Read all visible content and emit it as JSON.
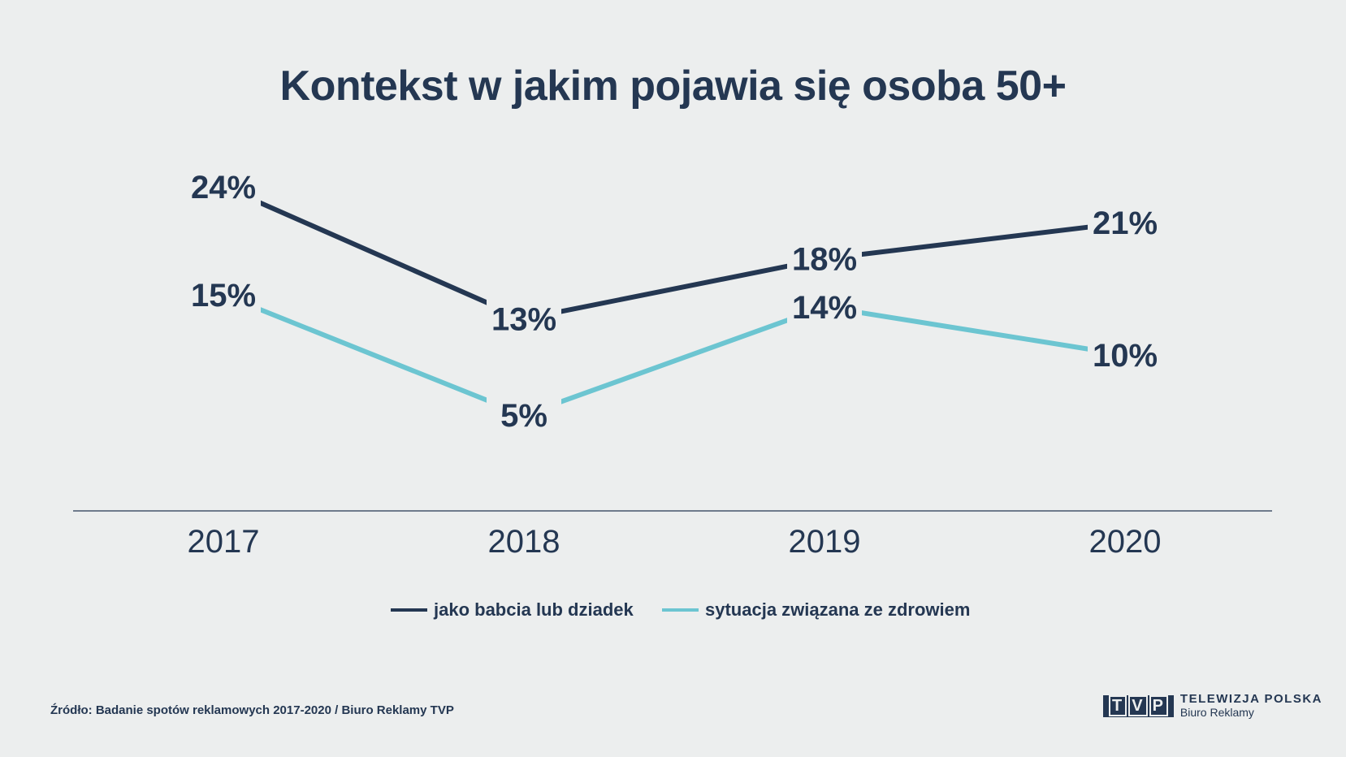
{
  "chart_data": {
    "type": "line",
    "title": "Kontekst w jakim pojawia się osoba 50+",
    "categories": [
      "2017",
      "2018",
      "2019",
      "2020"
    ],
    "series": [
      {
        "name": "jako babcia lub dziadek",
        "values": [
          24,
          13,
          18,
          21
        ],
        "labels": [
          "24%",
          "13%",
          "18%",
          "21%"
        ],
        "color": "#243752"
      },
      {
        "name": "sytuacja związana ze zdrowiem",
        "values": [
          15,
          5,
          14,
          10
        ],
        "labels": [
          "15%",
          "5%",
          "14%",
          "10%"
        ],
        "color": "#6cc5d1"
      }
    ],
    "legend": "bottom",
    "grid": false
  },
  "source": "Źródło: Badanie spotów reklamowych 2017-2020 / Biuro Reklamy TVP",
  "logo": {
    "mark": "TVP",
    "line1": "TELEWIZJA POLSKA",
    "line2": "Biuro Reklamy"
  },
  "background": "#eceeee"
}
